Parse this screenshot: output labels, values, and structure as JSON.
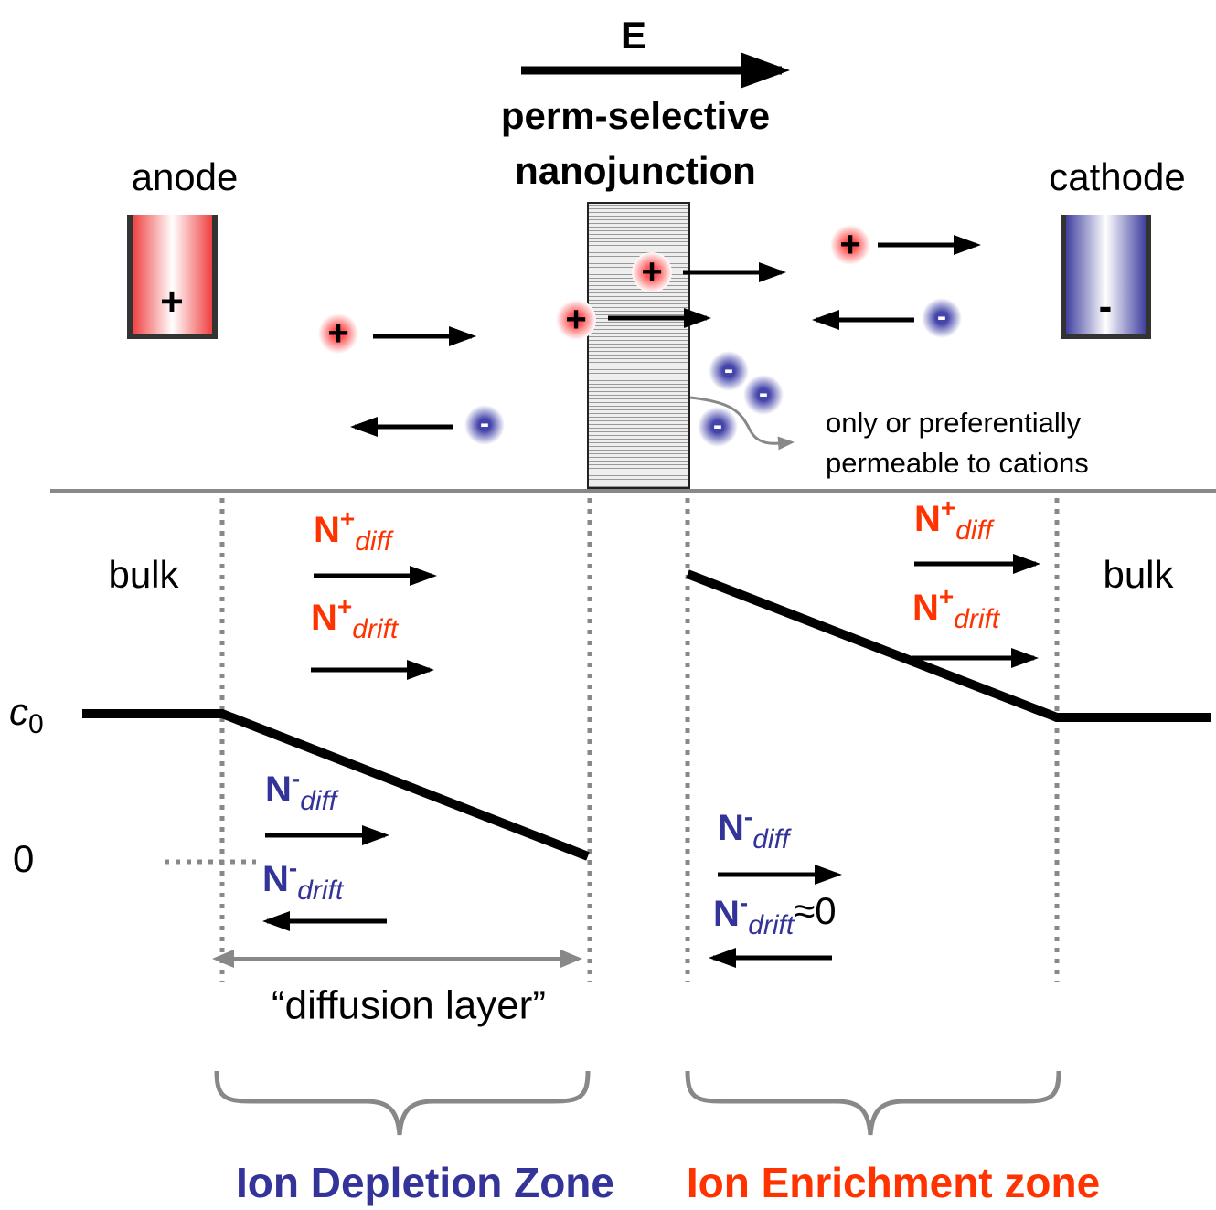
{
  "field": {
    "label": "E"
  },
  "junction": {
    "line1": "perm-selective",
    "line2": "nanojunction",
    "note_line1": "only or preferentially",
    "note_line2": "permeable to cations"
  },
  "electrodes": {
    "anode": {
      "label": "anode",
      "sign": "+"
    },
    "cathode": {
      "label": "cathode",
      "sign": "-"
    }
  },
  "ions": {
    "cation": "+",
    "anion": "-"
  },
  "profile": {
    "bulk_left": "bulk",
    "bulk_right": "bulk",
    "c0": {
      "symbol": "c",
      "sub": "0"
    },
    "zero": "0",
    "diffusion_layer": "“diffusion layer”"
  },
  "fluxes": [
    {
      "symbol": "N",
      "charge": "+",
      "sub": "diff"
    },
    {
      "symbol": "N",
      "charge": "+",
      "sub": "drift"
    },
    {
      "symbol": "N",
      "charge": "+",
      "sub": "diff"
    },
    {
      "symbol": "N",
      "charge": "+",
      "sub": "drift"
    },
    {
      "symbol": "N",
      "charge": "-",
      "sub": "diff"
    },
    {
      "symbol": "N",
      "charge": "-",
      "sub": "drift"
    },
    {
      "symbol": "N",
      "charge": "-",
      "sub": "diff"
    },
    {
      "symbol": "N",
      "charge": "-",
      "sub": "drift",
      "suffix": "≈0"
    }
  ],
  "zones": {
    "depletion": "Ion Depletion Zone",
    "enrichment": "Ion Enrichment zone"
  }
}
